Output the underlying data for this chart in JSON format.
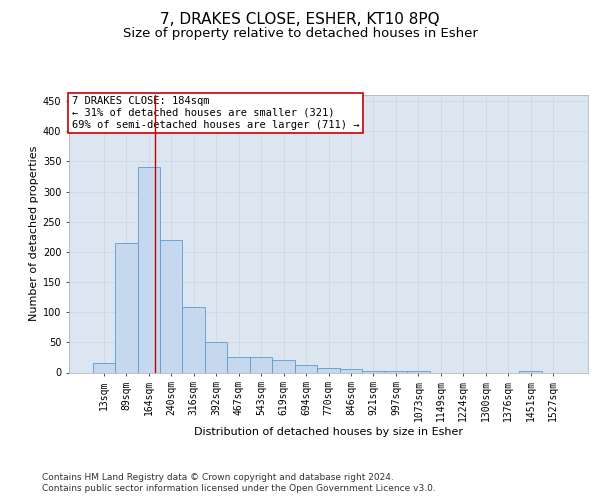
{
  "title": "7, DRAKES CLOSE, ESHER, KT10 8PQ",
  "subtitle": "Size of property relative to detached houses in Esher",
  "xlabel": "Distribution of detached houses by size in Esher",
  "ylabel": "Number of detached properties",
  "categories": [
    "13sqm",
    "89sqm",
    "164sqm",
    "240sqm",
    "316sqm",
    "392sqm",
    "467sqm",
    "543sqm",
    "619sqm",
    "694sqm",
    "770sqm",
    "846sqm",
    "921sqm",
    "997sqm",
    "1073sqm",
    "1149sqm",
    "1224sqm",
    "1300sqm",
    "1376sqm",
    "1451sqm",
    "1527sqm"
  ],
  "values": [
    15,
    215,
    340,
    220,
    108,
    50,
    25,
    25,
    20,
    12,
    8,
    5,
    2,
    2,
    2,
    0,
    0,
    0,
    0,
    2,
    0
  ],
  "bar_color": "#c5d8ee",
  "bar_edge_color": "#5b9bd5",
  "vline_color": "#cc0000",
  "annotation_text": "7 DRAKES CLOSE: 184sqm\n← 31% of detached houses are smaller (321)\n69% of semi-detached houses are larger (711) →",
  "annotation_box_color": "#ffffff",
  "annotation_box_edge_color": "#cc0000",
  "ylim": [
    0,
    460
  ],
  "yticks": [
    0,
    50,
    100,
    150,
    200,
    250,
    300,
    350,
    400,
    450
  ],
  "grid_color": "#d0d8e0",
  "background_color": "#dce6f0",
  "footer_line1": "Contains HM Land Registry data © Crown copyright and database right 2024.",
  "footer_line2": "Contains public sector information licensed under the Open Government Licence v3.0.",
  "title_fontsize": 11,
  "subtitle_fontsize": 9.5,
  "axis_label_fontsize": 8,
  "tick_fontsize": 7,
  "annotation_fontsize": 7.5,
  "footer_fontsize": 6.5,
  "vline_x": 2.27
}
